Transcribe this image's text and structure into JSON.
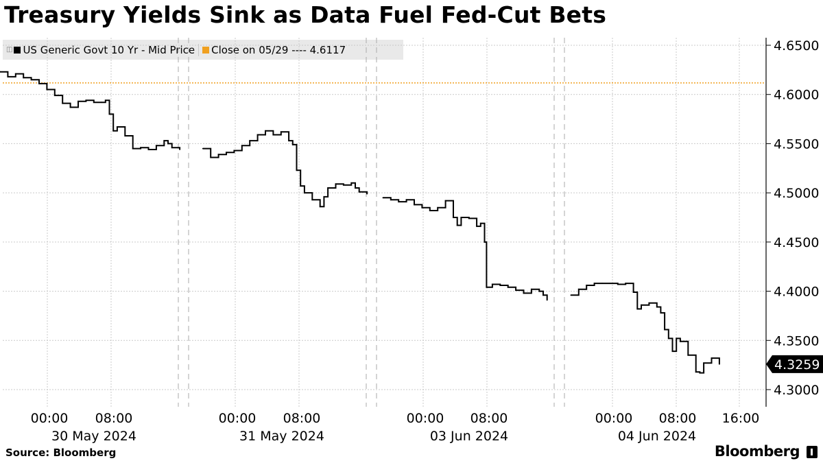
{
  "title": "Treasury Yields Sink as Data Fuel Fed-Cut Bets",
  "legend": {
    "series_label": "US Generic Govt 10 Yr - Mid Price",
    "series_color": "#000000",
    "close_label": "Close on 05/29 ---- 4.6117",
    "close_color": "#f0a020",
    "expand_icon": "expand-icon"
  },
  "footer": {
    "source": "Source: Bloomberg",
    "brand": "Bloomberg"
  },
  "chart_data": {
    "type": "line",
    "title": "Treasury Yields Sink as Data Fuel Fed-Cut Bets",
    "ylim": [
      4.285,
      4.665
    ],
    "y_ticks": [
      "4.6500",
      "4.6000",
      "4.5500",
      "4.5000",
      "4.4500",
      "4.4000",
      "4.3500",
      "4.3000"
    ],
    "x_tick_labels": [
      "00:00",
      "08:00",
      "00:00",
      "08:00",
      "00:00",
      "08:00",
      "00:00",
      "08:00",
      "16:00"
    ],
    "day_labels": [
      "30 May 2024",
      "31 May 2024",
      "03 Jun 2024",
      "04 Jun 2024"
    ],
    "grid": true,
    "legend_position": "top-left",
    "reference_line": {
      "name": "Close on 05/29",
      "value": 4.6117,
      "color": "#f0a020"
    },
    "last_value_label": "4.3259",
    "series": [
      {
        "name": "US Generic Govt 10 Yr - Mid Price",
        "color": "#000000",
        "segments": [
          [
            [
              "05-29 20:00",
              4.623
            ],
            [
              "05-29 21:00",
              4.618
            ],
            [
              "05-29 22:00",
              4.621
            ],
            [
              "05-29 23:00",
              4.617
            ],
            [
              "05-30 00:00",
              4.615
            ],
            [
              "05-30 01:00",
              4.611
            ],
            [
              "05-30 02:00",
              4.605
            ],
            [
              "05-30 03:00",
              4.599
            ],
            [
              "05-30 04:00",
              4.591
            ],
            [
              "05-30 05:00",
              4.587
            ],
            [
              "05-30 06:00",
              4.593
            ],
            [
              "05-30 07:00",
              4.594
            ],
            [
              "05-30 08:00",
              4.592
            ],
            [
              "05-30 09:00",
              4.592
            ],
            [
              "05-30 09:30",
              4.594
            ],
            [
              "05-30 10:00",
              4.58
            ],
            [
              "05-30 10:30",
              4.563
            ],
            [
              "05-30 11:00",
              4.567
            ],
            [
              "05-30 12:00",
              4.558
            ],
            [
              "05-30 13:00",
              4.545
            ],
            [
              "05-30 14:00",
              4.546
            ],
            [
              "05-30 15:00",
              4.544
            ],
            [
              "05-30 16:00",
              4.548
            ],
            [
              "05-30 17:00",
              4.553
            ],
            [
              "05-30 17:30",
              4.55
            ],
            [
              "05-30 18:00",
              4.546
            ],
            [
              "05-30 19:00",
              4.544
            ]
          ],
          [
            [
              "05-30 22:00",
              4.545
            ],
            [
              "05-30 23:00",
              4.536
            ],
            [
              "05-31 00:00",
              4.539
            ],
            [
              "05-31 01:00",
              4.541
            ],
            [
              "05-31 02:00",
              4.543
            ],
            [
              "05-31 03:00",
              4.548
            ],
            [
              "05-31 04:00",
              4.553
            ],
            [
              "05-31 05:00",
              4.559
            ],
            [
              "05-31 06:00",
              4.563
            ],
            [
              "05-31 07:00",
              4.559
            ],
            [
              "05-31 08:00",
              4.562
            ],
            [
              "05-31 09:00",
              4.553
            ],
            [
              "05-31 09:30",
              4.549
            ],
            [
              "05-31 10:00",
              4.523
            ],
            [
              "05-31 10:30",
              4.507
            ],
            [
              "05-31 11:00",
              4.5
            ],
            [
              "05-31 12:00",
              4.493
            ],
            [
              "05-31 13:00",
              4.486
            ],
            [
              "05-31 13:30",
              4.496
            ],
            [
              "05-31 14:00",
              4.505
            ],
            [
              "05-31 15:00",
              4.509
            ],
            [
              "05-31 16:00",
              4.508
            ],
            [
              "05-31 17:00",
              4.51
            ],
            [
              "05-31 17:30",
              4.505
            ],
            [
              "05-31 18:00",
              4.501
            ],
            [
              "05-31 19:00",
              4.499
            ]
          ],
          [
            [
              "06-02 21:00",
              4.495
            ],
            [
              "06-02 22:00",
              4.493
            ],
            [
              "06-02 23:00",
              4.491
            ],
            [
              "06-03 00:00",
              4.493
            ],
            [
              "06-03 01:00",
              4.488
            ],
            [
              "06-03 02:00",
              4.485
            ],
            [
              "06-03 03:00",
              4.482
            ],
            [
              "06-03 04:00",
              4.485
            ],
            [
              "06-03 05:00",
              4.492
            ],
            [
              "06-03 06:00",
              4.475
            ],
            [
              "06-03 06:30",
              4.467
            ],
            [
              "06-03 07:00",
              4.475
            ],
            [
              "06-03 08:00",
              4.474
            ],
            [
              "06-03 09:00",
              4.466
            ],
            [
              "06-03 09:30",
              4.469
            ],
            [
              "06-03 10:00",
              4.45
            ],
            [
              "06-03 10:15",
              4.404
            ],
            [
              "06-03 11:00",
              4.407
            ],
            [
              "06-03 12:00",
              4.406
            ],
            [
              "06-03 13:00",
              4.404
            ],
            [
              "06-03 14:00",
              4.401
            ],
            [
              "06-03 15:00",
              4.398
            ],
            [
              "06-03 16:00",
              4.402
            ],
            [
              "06-03 17:00",
              4.4
            ],
            [
              "06-03 17:30",
              4.396
            ],
            [
              "06-03 18:00",
              4.391
            ]
          ],
          [
            [
              "06-03 21:00",
              4.396
            ],
            [
              "06-03 22:00",
              4.402
            ],
            [
              "06-03 23:00",
              4.406
            ],
            [
              "06-04 00:00",
              4.408
            ],
            [
              "06-04 01:00",
              4.408
            ],
            [
              "06-04 02:00",
              4.408
            ],
            [
              "06-04 03:00",
              4.407
            ],
            [
              "06-04 04:00",
              4.408
            ],
            [
              "06-04 05:00",
              4.399
            ],
            [
              "06-04 05:30",
              4.382
            ],
            [
              "06-04 06:00",
              4.386
            ],
            [
              "06-04 07:00",
              4.388
            ],
            [
              "06-04 08:00",
              4.384
            ],
            [
              "06-04 08:30",
              4.378
            ],
            [
              "06-04 09:00",
              4.361
            ],
            [
              "06-04 09:30",
              4.352
            ],
            [
              "06-04 10:00",
              4.339
            ],
            [
              "06-04 10:30",
              4.352
            ],
            [
              "06-04 11:00",
              4.349
            ],
            [
              "06-04 12:00",
              4.335
            ],
            [
              "06-04 13:00",
              4.318
            ],
            [
              "06-04 13:30",
              4.317
            ],
            [
              "06-04 14:00",
              4.327
            ],
            [
              "06-04 15:00",
              4.332
            ],
            [
              "06-04 16:00",
              4.3259
            ]
          ]
        ]
      }
    ]
  }
}
